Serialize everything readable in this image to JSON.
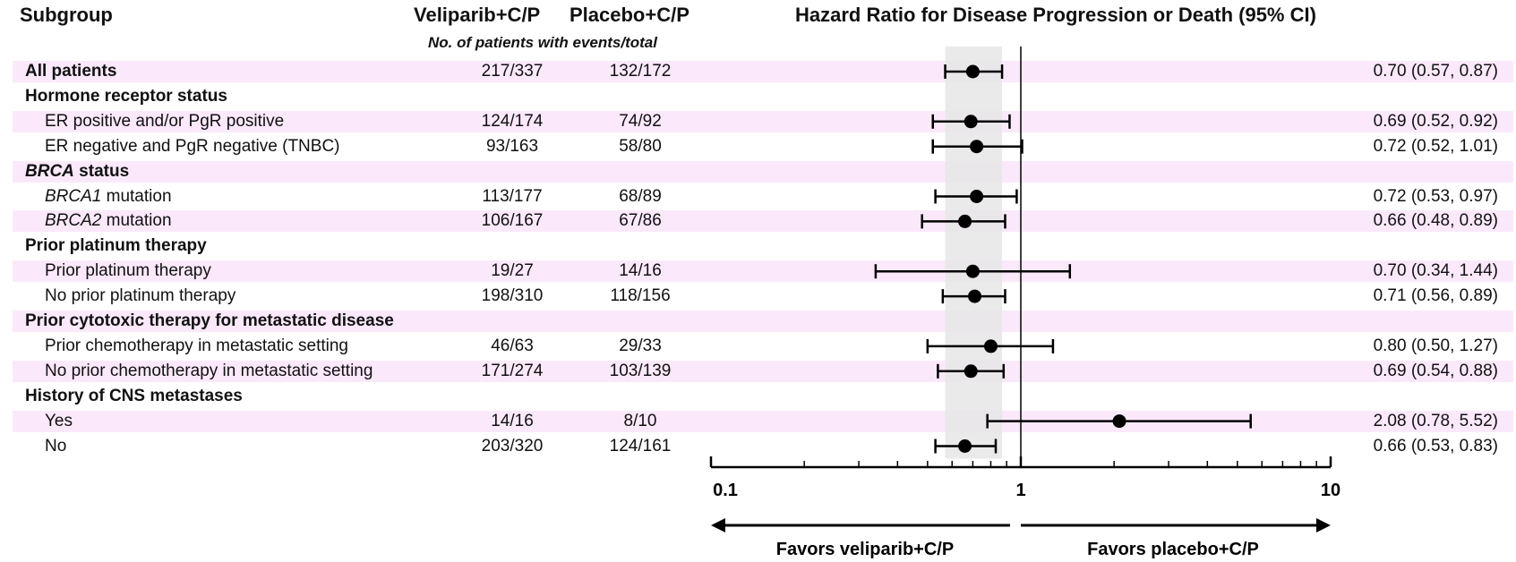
{
  "chart_data": {
    "type": "forest",
    "title": "Hazard Ratio for Disease Progression or Death (95% CI)",
    "col_subgroup": "Subgroup",
    "col_arm1": "Veliparib+C/P",
    "col_arm2": "Placebo+C/P",
    "col_subheader": "No. of patients with events/total",
    "x_scale": "log",
    "xlim": [
      0.1,
      10
    ],
    "x_ticks": [
      "0.1",
      "1",
      "10"
    ],
    "reference_line": 1,
    "shaded_band": [
      0.57,
      0.87
    ],
    "favors_left": "Favors veliparib+C/P",
    "favors_right": "Favors placebo+C/P",
    "rows": [
      {
        "label": "All patients",
        "kind": "header-data",
        "arm1": "217/337",
        "arm2": "132/172",
        "hr": 0.7,
        "lo": 0.57,
        "hi": 0.87,
        "text": "0.70 (0.57, 0.87)"
      },
      {
        "label": "Hormone receptor status",
        "kind": "header"
      },
      {
        "label": "ER positive and/or PgR positive",
        "kind": "data",
        "arm1": "124/174",
        "arm2": "74/92",
        "hr": 0.69,
        "lo": 0.52,
        "hi": 0.92,
        "text": "0.69 (0.52, 0.92)"
      },
      {
        "label": "ER negative and PgR negative (TNBC)",
        "kind": "data",
        "arm1": "93/163",
        "arm2": "58/80",
        "hr": 0.72,
        "lo": 0.52,
        "hi": 1.01,
        "text": "0.72 (0.52, 1.01)"
      },
      {
        "label": "BRCA status",
        "kind": "header",
        "italic_prefix": "BRCA",
        "rest": " status"
      },
      {
        "label": "BRCA1 mutation",
        "kind": "data",
        "italic_prefix": "BRCA1",
        "rest": " mutation",
        "arm1": "113/177",
        "arm2": "68/89",
        "hr": 0.72,
        "lo": 0.53,
        "hi": 0.97,
        "text": "0.72 (0.53, 0.97)"
      },
      {
        "label": "BRCA2 mutation",
        "kind": "data",
        "italic_prefix": "BRCA2",
        "rest": " mutation",
        "arm1": "106/167",
        "arm2": "67/86",
        "hr": 0.66,
        "lo": 0.48,
        "hi": 0.89,
        "text": "0.66 (0.48, 0.89)"
      },
      {
        "label": "Prior platinum therapy",
        "kind": "header"
      },
      {
        "label": "Prior platinum therapy",
        "kind": "data",
        "arm1": "19/27",
        "arm2": "14/16",
        "hr": 0.7,
        "lo": 0.34,
        "hi": 1.44,
        "text": "0.70 (0.34, 1.44)"
      },
      {
        "label": "No prior platinum therapy",
        "kind": "data",
        "arm1": "198/310",
        "arm2": "118/156",
        "hr": 0.71,
        "lo": 0.56,
        "hi": 0.89,
        "text": "0.71 (0.56, 0.89)"
      },
      {
        "label": "Prior cytotoxic therapy for metastatic disease",
        "kind": "header"
      },
      {
        "label": "Prior chemotherapy in metastatic setting",
        "kind": "data",
        "arm1": "46/63",
        "arm2": "29/33",
        "hr": 0.8,
        "lo": 0.5,
        "hi": 1.27,
        "text": "0.80 (0.50, 1.27)"
      },
      {
        "label": "No prior chemotherapy in metastatic setting",
        "kind": "data",
        "arm1": "171/274",
        "arm2": "103/139",
        "hr": 0.69,
        "lo": 0.54,
        "hi": 0.88,
        "text": "0.69 (0.54, 0.88)"
      },
      {
        "label": "History of CNS metastases",
        "kind": "header"
      },
      {
        "label": "Yes",
        "kind": "data",
        "arm1": "14/16",
        "arm2": "8/10",
        "hr": 2.08,
        "lo": 0.78,
        "hi": 5.52,
        "text": "2.08 (0.78, 5.52)"
      },
      {
        "label": "No",
        "kind": "data",
        "arm1": "203/320",
        "arm2": "124/161",
        "hr": 0.66,
        "lo": 0.53,
        "hi": 0.83,
        "text": "0.66 (0.53, 0.83)"
      }
    ]
  },
  "colors": {
    "band": "#fbe9fb",
    "shade": "#e6e6e6",
    "ink": "#000000"
  }
}
